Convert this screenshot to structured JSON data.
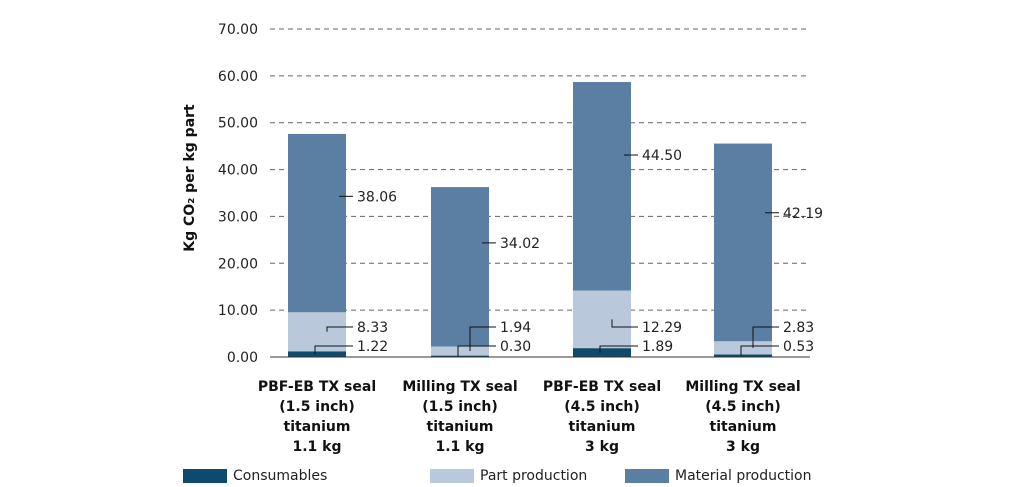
{
  "chart_data": {
    "type": "bar",
    "stacked": true,
    "categories": [
      [
        "PBF-EB TX seal",
        "(1.5 inch)",
        "titanium",
        "1.1 kg"
      ],
      [
        "Milling TX seal",
        "(1.5 inch)",
        "titanium",
        "1.1 kg"
      ],
      [
        "PBF-EB TX seal",
        "(4.5 inch)",
        "titanium",
        "3 kg"
      ],
      [
        "Milling TX seal",
        "(4.5 inch)",
        "titanium",
        "3 kg"
      ]
    ],
    "series": [
      {
        "name": "Consumables",
        "color": "#0d4a6e",
        "values": [
          1.22,
          0.3,
          1.89,
          0.53
        ]
      },
      {
        "name": "Part production",
        "color": "#b9c9db",
        "values": [
          8.33,
          1.94,
          12.29,
          2.83
        ]
      },
      {
        "name": "Material production",
        "color": "#5a7fa3",
        "values": [
          38.06,
          34.02,
          44.5,
          42.19
        ]
      }
    ],
    "ylabel": "Kg CO₂ per kg part",
    "ylim": [
      0,
      70
    ],
    "yticks": [
      "0.00",
      "10.00",
      "20.00",
      "30.00",
      "40.00",
      "50.00",
      "60.00",
      "70.00"
    ],
    "grid": "dashed-horizontal",
    "legend_position": "bottom",
    "data_labels": [
      [
        "1.22",
        "8.33",
        "38.06"
      ],
      [
        "0.30",
        "1.94",
        "34.02"
      ],
      [
        "1.89",
        "12.29",
        "44.50"
      ],
      [
        "0.53",
        "2.83",
        "42.19"
      ]
    ]
  }
}
